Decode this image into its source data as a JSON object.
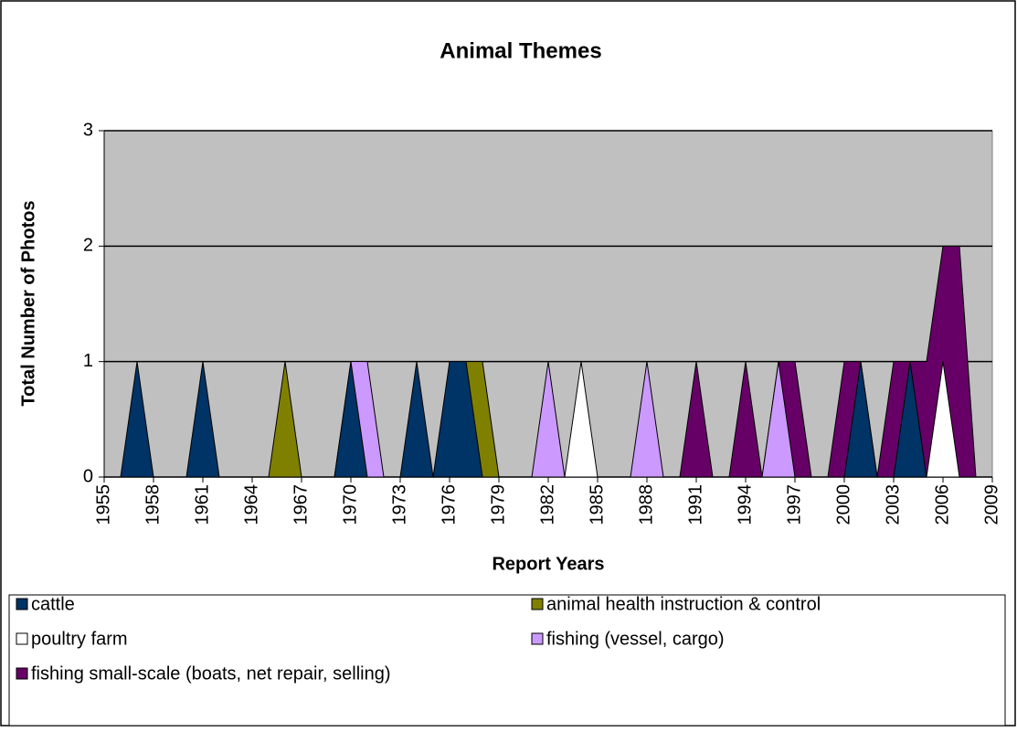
{
  "chart_data": {
    "type": "area",
    "title": "Animal Themes",
    "x_label": "Report Years",
    "y_label": "Total Number of Photos",
    "x": [
      1955,
      1956,
      1957,
      1958,
      1959,
      1960,
      1961,
      1962,
      1963,
      1964,
      1965,
      1966,
      1967,
      1968,
      1969,
      1970,
      1971,
      1972,
      1973,
      1974,
      1975,
      1976,
      1977,
      1978,
      1979,
      1980,
      1981,
      1982,
      1983,
      1984,
      1985,
      1986,
      1987,
      1988,
      1989,
      1990,
      1991,
      1992,
      1993,
      1994,
      1995,
      1996,
      1997,
      1998,
      1999,
      2000,
      2001,
      2002,
      2003,
      2004,
      2005,
      2006,
      2007,
      2008,
      2009
    ],
    "series": [
      {
        "name": "cattle",
        "color": "#003366",
        "values": [
          0,
          0,
          1,
          0,
          0,
          0,
          1,
          0,
          0,
          0,
          0,
          0,
          0,
          0,
          0,
          1,
          0,
          0,
          0,
          1,
          0,
          1,
          1,
          0,
          0,
          0,
          0,
          0,
          0,
          0,
          0,
          0,
          0,
          0,
          0,
          0,
          0,
          0,
          0,
          0,
          0,
          0,
          0,
          0,
          0,
          0,
          1,
          0,
          0,
          1,
          0,
          0,
          0,
          0,
          0
        ]
      },
      {
        "name": "animal health instruction & control",
        "color": "#808000",
        "values": [
          0,
          0,
          0,
          0,
          0,
          0,
          0,
          0,
          0,
          0,
          0,
          1,
          0,
          0,
          0,
          0,
          0,
          0,
          0,
          0,
          0,
          0,
          1,
          1,
          0,
          0,
          0,
          0,
          0,
          0,
          0,
          0,
          0,
          0,
          0,
          0,
          0,
          0,
          0,
          0,
          0,
          0,
          0,
          0,
          0,
          0,
          0,
          0,
          0,
          0,
          0,
          0,
          0,
          0,
          0
        ]
      },
      {
        "name": "poultry farm",
        "color": "#ffffff",
        "values": [
          0,
          0,
          0,
          0,
          0,
          0,
          0,
          0,
          0,
          0,
          0,
          0,
          0,
          0,
          0,
          0,
          0,
          0,
          0,
          0,
          0,
          0,
          0,
          0,
          0,
          0,
          0,
          0,
          0,
          1,
          0,
          0,
          0,
          0,
          0,
          0,
          0,
          0,
          0,
          0,
          0,
          0,
          0,
          0,
          0,
          0,
          0,
          0,
          0,
          0,
          0,
          1,
          0,
          0,
          0
        ]
      },
      {
        "name": "fishing (vessel, cargo)",
        "color": "#cc99ff",
        "values": [
          0,
          0,
          0,
          0,
          0,
          0,
          0,
          0,
          0,
          0,
          0,
          0,
          0,
          0,
          0,
          1,
          1,
          0,
          0,
          0,
          0,
          0,
          0,
          0,
          0,
          0,
          0,
          1,
          0,
          0,
          0,
          0,
          0,
          1,
          0,
          0,
          0,
          0,
          0,
          0,
          0,
          1,
          0,
          0,
          0,
          0,
          0,
          0,
          0,
          0,
          0,
          0,
          0,
          0,
          0
        ]
      },
      {
        "name": "fishing small-scale (boats, net repair, selling)",
        "color": "#660066",
        "values": [
          0,
          0,
          0,
          0,
          0,
          0,
          0,
          0,
          0,
          0,
          0,
          0,
          0,
          0,
          0,
          0,
          0,
          0,
          0,
          0,
          0,
          0,
          0,
          0,
          0,
          0,
          0,
          0,
          0,
          0,
          0,
          0,
          0,
          0,
          0,
          0,
          1,
          0,
          0,
          1,
          0,
          1,
          1,
          0,
          0,
          1,
          1,
          0,
          1,
          1,
          1,
          2,
          2,
          0,
          0
        ]
      }
    ],
    "xlim": [
      1955,
      2009
    ],
    "xticks": [
      1955,
      1958,
      1961,
      1964,
      1967,
      1970,
      1973,
      1976,
      1979,
      1982,
      1985,
      1988,
      1991,
      1994,
      1997,
      2000,
      2003,
      2006,
      2009
    ],
    "ylim": [
      0,
      3
    ],
    "yticks": [
      0,
      1,
      2,
      3
    ],
    "grid": true
  }
}
